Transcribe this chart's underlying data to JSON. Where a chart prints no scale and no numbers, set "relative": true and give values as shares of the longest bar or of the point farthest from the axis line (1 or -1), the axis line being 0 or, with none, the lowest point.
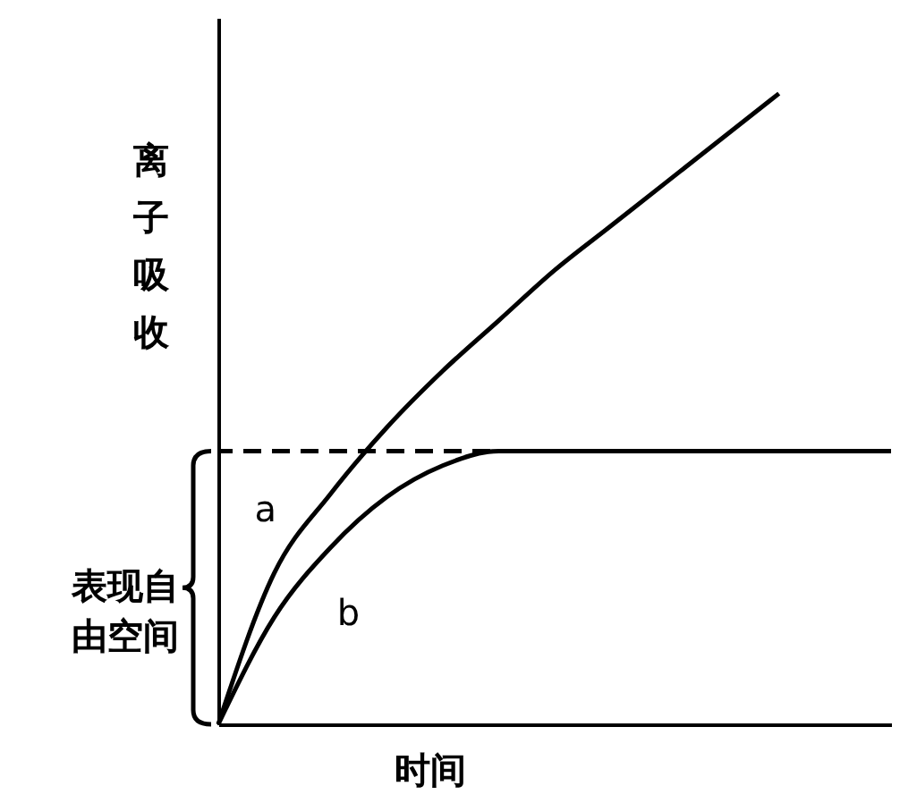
{
  "chart_data": {
    "type": "line",
    "relative": true,
    "xlabel": "时间",
    "ylabel": "离子吸收",
    "categories": [
      null,
      null,
      null,
      null,
      null,
      null,
      null,
      null,
      null,
      null,
      null,
      null,
      null
    ],
    "series": [
      {
        "name": "a",
        "color": "#000000",
        "values": [
          0,
          0.24,
          0.365,
          0.47,
          0.56,
          0.64,
          0.72,
          0.79,
          0.86,
          0.93,
          1,
          null,
          null
        ]
      },
      {
        "name": "b",
        "color": "#000000",
        "values": [
          0,
          0.17,
          0.28,
          0.36,
          0.41,
          0.433,
          0.433,
          0.433,
          0.433,
          0.433,
          0.433,
          0.433,
          0.433
        ]
      }
    ],
    "ref_lines": [
      {
        "axis": "y",
        "value": 0.433,
        "line_style": "dashed",
        "color": "#000000"
      }
    ],
    "annotations": [
      "表现自由空间"
    ],
    "grid": false,
    "tick_labels": false,
    "line_style": "solid",
    "marker": "none"
  }
}
